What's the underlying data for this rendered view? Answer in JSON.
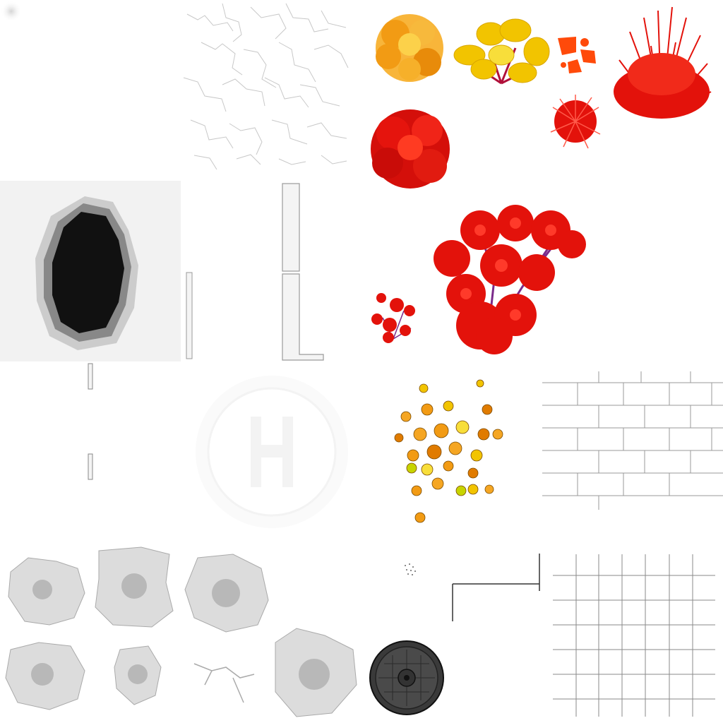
{
  "atlas": {
    "background": "#ffffff",
    "palette": {
      "orange": "#f5a623",
      "orange_dark": "#e07b00",
      "yellow": "#f2c400",
      "yellow_light": "#f8de3a",
      "red": "#e3120b",
      "red_dark": "#b00000",
      "red_orange": "#ff4a0a",
      "purple_stem": "#8a2f7a",
      "dark_grey": "#111111",
      "mid_grey": "#888888",
      "light_grey": "#dcdcdc",
      "manhole": "#3a3a3a"
    },
    "sprites": [
      {
        "name": "soft-dot-icon"
      },
      {
        "name": "crack-network-texture"
      },
      {
        "name": "orange-shrub"
      },
      {
        "name": "yellow-shrub"
      },
      {
        "name": "orange-leaf-splatter"
      },
      {
        "name": "red-grass-bush"
      },
      {
        "name": "red-fluffy-tuft"
      },
      {
        "name": "red-round-bush"
      },
      {
        "name": "dark-hole-decal"
      },
      {
        "name": "wall-segment-vertical"
      },
      {
        "name": "wall-segment-l-shape"
      },
      {
        "name": "red-flower-tree"
      },
      {
        "name": "small-red-flower-cluster"
      },
      {
        "name": "small-post-marker"
      },
      {
        "name": "helipad-logo-watermark"
      },
      {
        "name": "yellow-orange-flower-scatter"
      },
      {
        "name": "brick-pattern-texture"
      },
      {
        "name": "grey-stain-decals"
      },
      {
        "name": "tiny-dot-cluster"
      },
      {
        "name": "thin-line-segment"
      },
      {
        "name": "grid-tile-texture"
      },
      {
        "name": "manhole-cover-icon"
      }
    ]
  }
}
